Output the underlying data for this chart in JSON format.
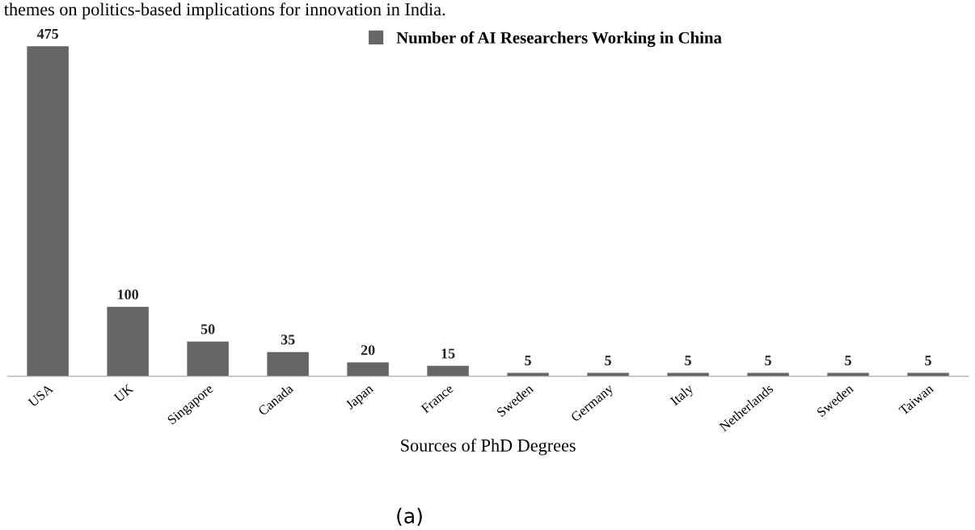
{
  "chart_data": {
    "type": "bar",
    "categories": [
      "USA",
      "UK",
      "Singapore",
      "Canada",
      "Japan",
      "France",
      "Sweden",
      "Germany",
      "Italy",
      "Netherlands",
      "Sweden",
      "Taiwan"
    ],
    "series": [
      {
        "name": "Number of AI Researchers Working in China",
        "color": "#666666",
        "values": [
          475,
          100,
          50,
          35,
          20,
          15,
          5,
          5,
          5,
          5,
          5,
          5
        ]
      }
    ],
    "xlabel": "Sources of PhD Degrees",
    "data_labels": true,
    "legend": "top",
    "grid": false,
    "tick_labels": "x",
    "annotations": [
      "themes on politics-based implications for innovation in India.",
      "(a)"
    ]
  }
}
